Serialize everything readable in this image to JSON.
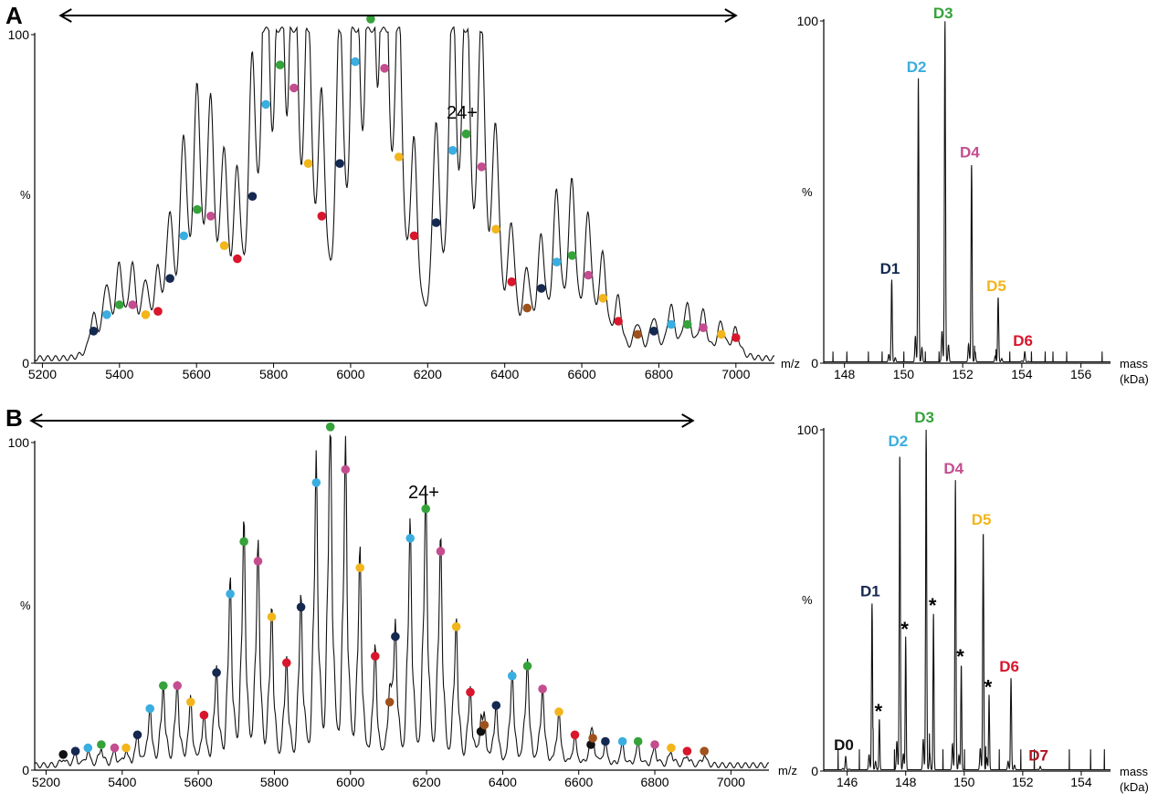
{
  "colors": {
    "D0": "#111111",
    "D1": "#142850",
    "D2": "#3aaee0",
    "D3": "#35a23a",
    "D4": "#c44d8f",
    "D5": "#f2b51c",
    "D6": "#d8162c",
    "D7": "#b0141f",
    "extra": "#a0521c",
    "trace": "#111111"
  },
  "chart_data": [
    {
      "id": "A-mz",
      "panel": "A",
      "type": "line",
      "panel_label": "A",
      "xlabel": "m/z",
      "ylabel": "%",
      "xlim": [
        5180,
        7100
      ],
      "ylim": [
        0,
        100
      ],
      "xticks": [
        "5200",
        "5400",
        "5600",
        "5800",
        "6000",
        "6200",
        "6400",
        "6600",
        "6800",
        "7000"
      ],
      "yticks": [
        "0",
        "100"
      ],
      "annotation": "24+",
      "charge_annotation_mz": 6260,
      "range_arrow": [
        5330,
        7000
      ],
      "peaks": [
        {
          "mz": 5333,
          "y": 7,
          "s": "D1"
        },
        {
          "mz": 5367,
          "y": 12,
          "s": "D2"
        },
        {
          "mz": 5400,
          "y": 15,
          "s": "D3"
        },
        {
          "mz": 5434,
          "y": 15,
          "s": "D4"
        },
        {
          "mz": 5468,
          "y": 12,
          "s": "D5"
        },
        {
          "mz": 5500,
          "y": 13,
          "s": "D6"
        },
        {
          "mz": 5531,
          "y": 23,
          "s": "D1"
        },
        {
          "mz": 5567,
          "y": 36,
          "s": "D2"
        },
        {
          "mz": 5602,
          "y": 44,
          "s": "D3"
        },
        {
          "mz": 5637,
          "y": 42,
          "s": "D4"
        },
        {
          "mz": 5672,
          "y": 33,
          "s": "D5"
        },
        {
          "mz": 5706,
          "y": 29,
          "s": "D6"
        },
        {
          "mz": 5745,
          "y": 48,
          "s": "D1"
        },
        {
          "mz": 5780,
          "y": 76,
          "s": "D2"
        },
        {
          "mz": 5817,
          "y": 88,
          "s": "D3"
        },
        {
          "mz": 5853,
          "y": 81,
          "s": "D4"
        },
        {
          "mz": 5890,
          "y": 58,
          "s": "D5"
        },
        {
          "mz": 5925,
          "y": 42,
          "s": "D6"
        },
        {
          "mz": 5972,
          "y": 58,
          "s": "D1"
        },
        {
          "mz": 6012,
          "y": 89,
          "s": "D2"
        },
        {
          "mz": 6052,
          "y": 102,
          "s": "D3"
        },
        {
          "mz": 6088,
          "y": 87,
          "s": "D4"
        },
        {
          "mz": 6125,
          "y": 60,
          "s": "D5"
        },
        {
          "mz": 6165,
          "y": 36,
          "s": "D6"
        },
        {
          "mz": 6222,
          "y": 40,
          "s": "D1"
        },
        {
          "mz": 6265,
          "y": 62,
          "s": "D2"
        },
        {
          "mz": 6300,
          "y": 67,
          "s": "D3"
        },
        {
          "mz": 6340,
          "y": 57,
          "s": "D4"
        },
        {
          "mz": 6377,
          "y": 38,
          "s": "D5"
        },
        {
          "mz": 6418,
          "y": 22,
          "s": "D6"
        },
        {
          "mz": 6458,
          "y": 14,
          "s": "extra"
        },
        {
          "mz": 6495,
          "y": 20,
          "s": "D1"
        },
        {
          "mz": 6535,
          "y": 28,
          "s": "D2"
        },
        {
          "mz": 6575,
          "y": 30,
          "s": "D3"
        },
        {
          "mz": 6617,
          "y": 24,
          "s": "D4"
        },
        {
          "mz": 6655,
          "y": 17,
          "s": "D5"
        },
        {
          "mz": 6695,
          "y": 10,
          "s": "D6"
        },
        {
          "mz": 6745,
          "y": 6,
          "s": "extra"
        },
        {
          "mz": 6787,
          "y": 7,
          "s": "D1"
        },
        {
          "mz": 6832,
          "y": 9,
          "s": "D2"
        },
        {
          "mz": 6874,
          "y": 9,
          "s": "D3"
        },
        {
          "mz": 6915,
          "y": 8,
          "s": "D4"
        },
        {
          "mz": 6962,
          "y": 6,
          "s": "D5"
        },
        {
          "mz": 7000,
          "y": 5,
          "s": "D6"
        }
      ]
    },
    {
      "id": "A-mass",
      "panel": "A",
      "type": "line",
      "xlabel": "mass (kDa)",
      "ylabel": "%",
      "xlim": [
        147.3,
        157.0
      ],
      "ylim": [
        0,
        100
      ],
      "xticks": [
        "148",
        "150",
        "152",
        "154",
        "156"
      ],
      "yticks": [
        "0",
        "100"
      ],
      "species": [
        {
          "name": "D1",
          "mass": 149.6,
          "y": 24
        },
        {
          "name": "D2",
          "mass": 150.5,
          "y": 83
        },
        {
          "name": "D3",
          "mass": 151.4,
          "y": 100
        },
        {
          "name": "D4",
          "mass": 152.3,
          "y": 58
        },
        {
          "name": "D5",
          "mass": 153.2,
          "y": 19
        },
        {
          "name": "D6",
          "mass": 154.1,
          "y": 3
        }
      ]
    },
    {
      "id": "B-mz",
      "panel": "B",
      "type": "line",
      "panel_label": "B",
      "xlabel": "m/z",
      "ylabel": "%",
      "xlim": [
        5170,
        7100
      ],
      "ylim": [
        0,
        100
      ],
      "xticks": [
        "5200",
        "5400",
        "5600",
        "5800",
        "6000",
        "6200",
        "6400",
        "6600",
        "6800",
        "7000"
      ],
      "yticks": [
        "0",
        "100"
      ],
      "annotation": "24+",
      "charge_annotation_mz": 6160,
      "range_arrow": [
        5245,
        6900
      ],
      "peaks": [
        {
          "mz": 5245,
          "y": 2,
          "s": "D0"
        },
        {
          "mz": 5277,
          "y": 3,
          "s": "D1"
        },
        {
          "mz": 5310,
          "y": 4,
          "s": "D2"
        },
        {
          "mz": 5345,
          "y": 5,
          "s": "D3"
        },
        {
          "mz": 5380,
          "y": 4,
          "s": "D4"
        },
        {
          "mz": 5410,
          "y": 4,
          "s": "D5"
        },
        {
          "mz": 5440,
          "y": 8,
          "s": "D1"
        },
        {
          "mz": 5473,
          "y": 16,
          "s": "D2"
        },
        {
          "mz": 5508,
          "y": 23,
          "s": "D3"
        },
        {
          "mz": 5545,
          "y": 23,
          "s": "D4"
        },
        {
          "mz": 5580,
          "y": 18,
          "s": "D5"
        },
        {
          "mz": 5615,
          "y": 14,
          "s": "D6"
        },
        {
          "mz": 5648,
          "y": 27,
          "s": "D1"
        },
        {
          "mz": 5684,
          "y": 51,
          "s": "D2"
        },
        {
          "mz": 5720,
          "y": 67,
          "s": "D3"
        },
        {
          "mz": 5757,
          "y": 61,
          "s": "D4"
        },
        {
          "mz": 5793,
          "y": 44,
          "s": "D5"
        },
        {
          "mz": 5832,
          "y": 30,
          "s": "D6"
        },
        {
          "mz": 5870,
          "y": 47,
          "s": "D1"
        },
        {
          "mz": 5910,
          "y": 85,
          "s": "D2"
        },
        {
          "mz": 5947,
          "y": 102,
          "s": "D3"
        },
        {
          "mz": 5987,
          "y": 89,
          "s": "D4"
        },
        {
          "mz": 6025,
          "y": 59,
          "s": "D5"
        },
        {
          "mz": 6065,
          "y": 32,
          "s": "D6"
        },
        {
          "mz": 6103,
          "y": 18,
          "s": "extra"
        },
        {
          "mz": 6118,
          "y": 38,
          "s": "D1"
        },
        {
          "mz": 6157,
          "y": 68,
          "s": "D2"
        },
        {
          "mz": 6198,
          "y": 77,
          "s": "D3"
        },
        {
          "mz": 6237,
          "y": 64,
          "s": "D4"
        },
        {
          "mz": 6278,
          "y": 41,
          "s": "D5"
        },
        {
          "mz": 6315,
          "y": 21,
          "s": "D6"
        },
        {
          "mz": 6343,
          "y": 9,
          "s": "D0"
        },
        {
          "mz": 6352,
          "y": 11,
          "s": "extra"
        },
        {
          "mz": 6383,
          "y": 17,
          "s": "D1"
        },
        {
          "mz": 6425,
          "y": 26,
          "s": "D2"
        },
        {
          "mz": 6465,
          "y": 29,
          "s": "D3"
        },
        {
          "mz": 6505,
          "y": 22,
          "s": "D4"
        },
        {
          "mz": 6548,
          "y": 15,
          "s": "D5"
        },
        {
          "mz": 6590,
          "y": 8,
          "s": "D6"
        },
        {
          "mz": 6632,
          "y": 5,
          "s": "D0"
        },
        {
          "mz": 6637,
          "y": 7,
          "s": "extra"
        },
        {
          "mz": 6670,
          "y": 6,
          "s": "D1"
        },
        {
          "mz": 6715,
          "y": 6,
          "s": "D2"
        },
        {
          "mz": 6756,
          "y": 6,
          "s": "D3"
        },
        {
          "mz": 6800,
          "y": 5,
          "s": "D4"
        },
        {
          "mz": 6843,
          "y": 4,
          "s": "D5"
        },
        {
          "mz": 6885,
          "y": 3,
          "s": "D6"
        },
        {
          "mz": 6930,
          "y": 3,
          "s": "extra"
        }
      ]
    },
    {
      "id": "B-mass",
      "panel": "B",
      "type": "line",
      "xlabel": "mass (kDa)",
      "ylabel": "%",
      "xlim": [
        145.2,
        155.0
      ],
      "ylim": [
        0,
        100
      ],
      "xticks": [
        "146",
        "148",
        "150",
        "152",
        "154"
      ],
      "yticks": [
        "0",
        "100"
      ],
      "species": [
        {
          "name": "D0",
          "mass": 145.95,
          "y": 4,
          "starred": false
        },
        {
          "name": "D1",
          "mass": 146.85,
          "y": 49,
          "starred": true,
          "star_mass": 147.1,
          "star_y": 15
        },
        {
          "name": "D2",
          "mass": 147.8,
          "y": 93,
          "starred": true,
          "star_mass": 148.0,
          "star_y": 39
        },
        {
          "name": "D3",
          "mass": 148.7,
          "y": 100,
          "starred": true,
          "star_mass": 148.95,
          "star_y": 46
        },
        {
          "name": "D4",
          "mass": 149.7,
          "y": 85,
          "starred": true,
          "star_mass": 149.9,
          "star_y": 31
        },
        {
          "name": "D5",
          "mass": 150.65,
          "y": 70,
          "starred": true,
          "star_mass": 150.85,
          "star_y": 22
        },
        {
          "name": "D6",
          "mass": 151.6,
          "y": 27,
          "starred": false
        },
        {
          "name": "D7",
          "mass": 152.6,
          "y": 1,
          "starred": false
        }
      ]
    }
  ]
}
